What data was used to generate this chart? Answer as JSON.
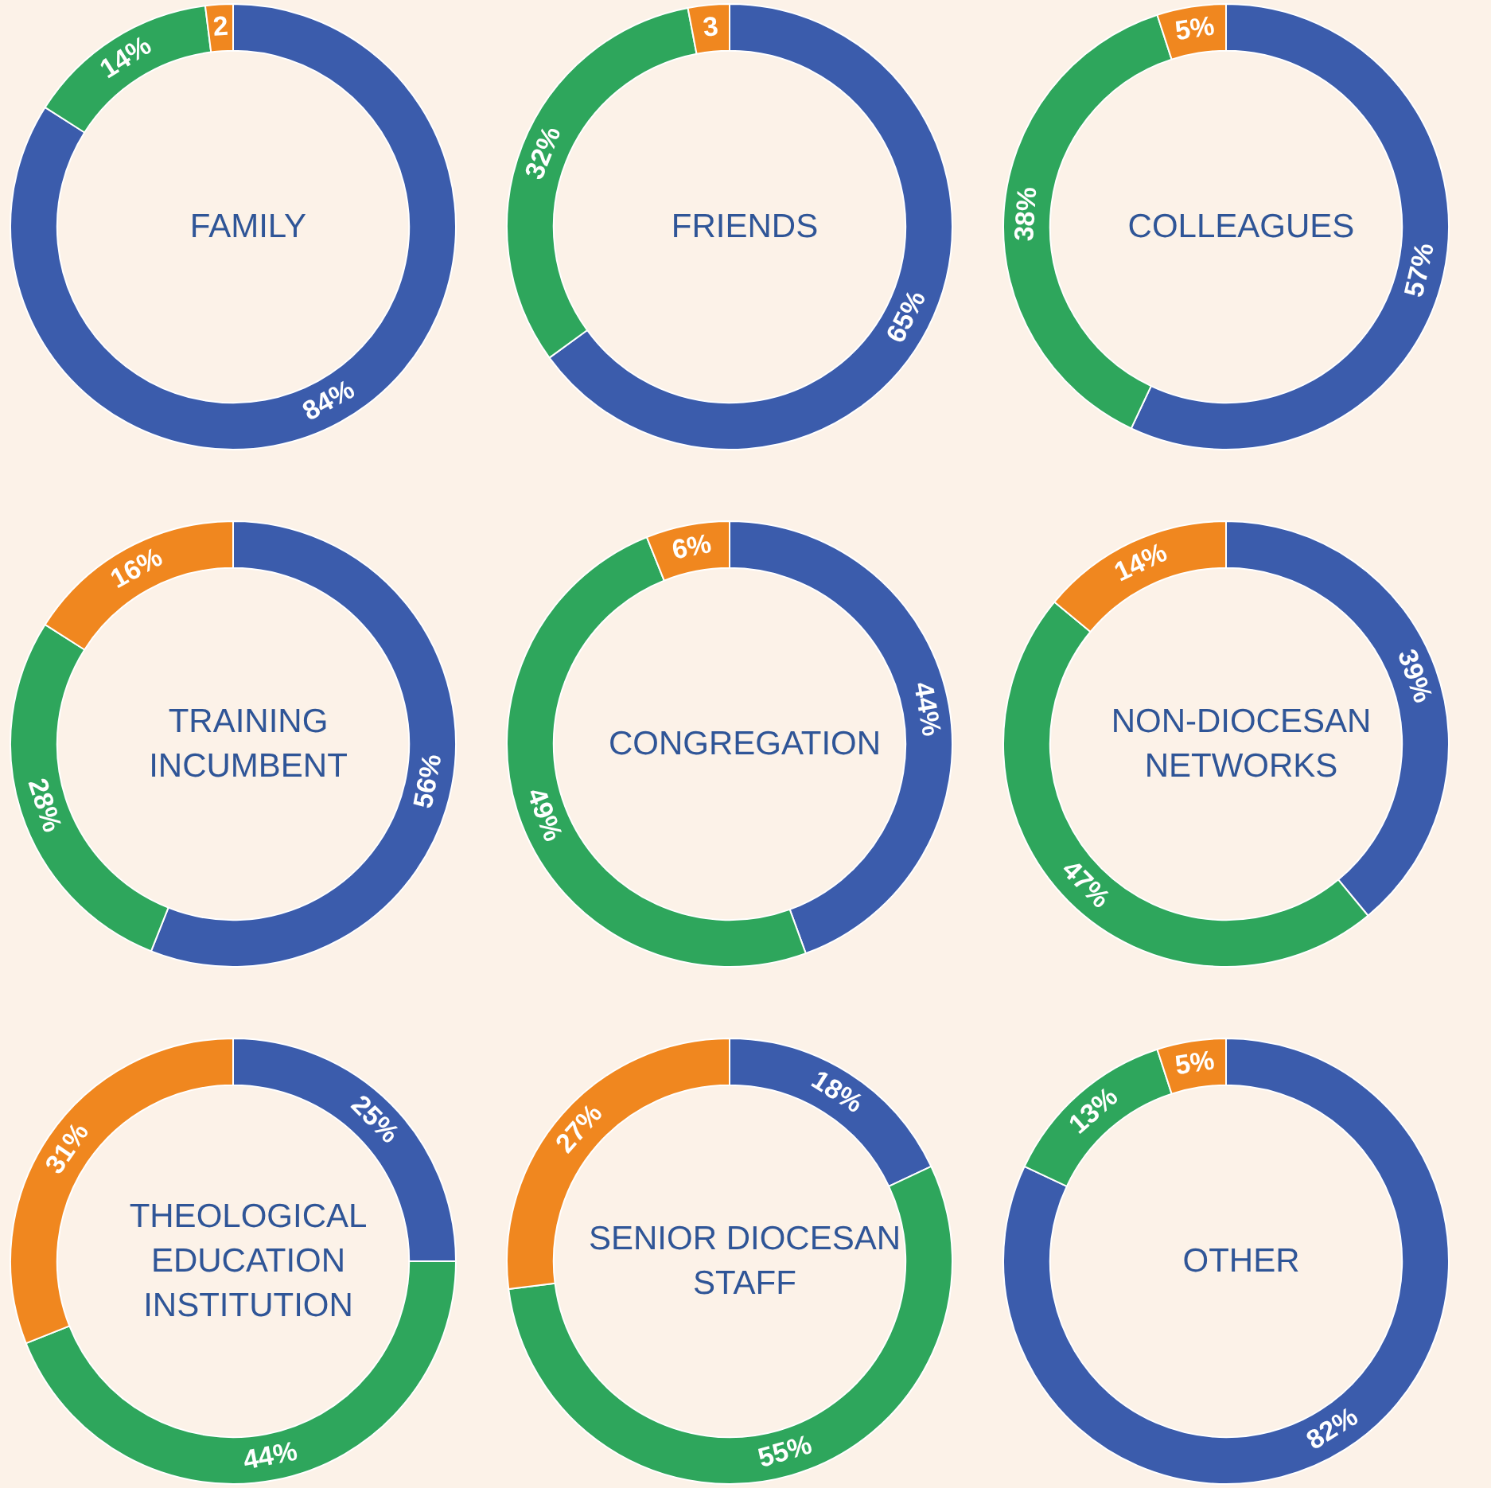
{
  "chart_data": [
    {
      "type": "donut",
      "title": "FAMILY",
      "categories": [
        null,
        null,
        null
      ],
      "values": [
        84,
        14,
        2
      ],
      "colors": [
        "#3b5cac",
        "#2ea65c",
        "#f0871f"
      ],
      "value_labels": [
        "84%",
        "14%",
        "2"
      ]
    },
    {
      "type": "donut",
      "title": "FRIENDS",
      "categories": [
        null,
        null,
        null
      ],
      "values": [
        65,
        32,
        3
      ],
      "colors": [
        "#3b5cac",
        "#2ea65c",
        "#f0871f"
      ],
      "value_labels": [
        "65%",
        "32%",
        "3"
      ]
    },
    {
      "type": "donut",
      "title": "COLLEAGUES",
      "categories": [
        null,
        null,
        null
      ],
      "values": [
        57,
        38,
        5
      ],
      "colors": [
        "#3b5cac",
        "#2ea65c",
        "#f0871f"
      ],
      "value_labels": [
        "57%",
        "38%",
        "5%"
      ]
    },
    {
      "type": "donut",
      "title": "TRAINING INCUMBENT",
      "categories": [
        null,
        null,
        null
      ],
      "values": [
        56,
        28,
        16
      ],
      "colors": [
        "#3b5cac",
        "#2ea65c",
        "#f0871f"
      ],
      "value_labels": [
        "56%",
        "28%",
        "16%"
      ]
    },
    {
      "type": "donut",
      "title": "CONGREGATION",
      "categories": [
        null,
        null,
        null
      ],
      "values": [
        44,
        49,
        6
      ],
      "colors": [
        "#3b5cac",
        "#2ea65c",
        "#f0871f"
      ],
      "value_labels": [
        "44%",
        "49%",
        "6%"
      ]
    },
    {
      "type": "donut",
      "title": "NON-DIOCESAN NETWORKS",
      "categories": [
        null,
        null,
        null
      ],
      "values": [
        39,
        47,
        14
      ],
      "colors": [
        "#3b5cac",
        "#2ea65c",
        "#f0871f"
      ],
      "value_labels": [
        "39%",
        "47%",
        "14%"
      ]
    },
    {
      "type": "donut",
      "title": "THEOLOGICAL EDUCATION INSTITUTION",
      "categories": [
        null,
        null,
        null
      ],
      "values": [
        25,
        44,
        31
      ],
      "colors": [
        "#3b5cac",
        "#2ea65c",
        "#f0871f"
      ],
      "value_labels": [
        "25%",
        "44%",
        "31%"
      ]
    },
    {
      "type": "donut",
      "title": "SENIOR DIOCESAN STAFF",
      "categories": [
        null,
        null,
        null
      ],
      "values": [
        18,
        55,
        27
      ],
      "colors": [
        "#3b5cac",
        "#2ea65c",
        "#f0871f"
      ],
      "value_labels": [
        "18%",
        "55%",
        "27%"
      ]
    },
    {
      "type": "donut",
      "title": "OTHER",
      "categories": [
        null,
        null,
        null
      ],
      "values": [
        82,
        13,
        5
      ],
      "colors": [
        "#3b5cac",
        "#2ea65c",
        "#f0871f"
      ],
      "value_labels": [
        "82%",
        "13%",
        "5%"
      ]
    }
  ]
}
